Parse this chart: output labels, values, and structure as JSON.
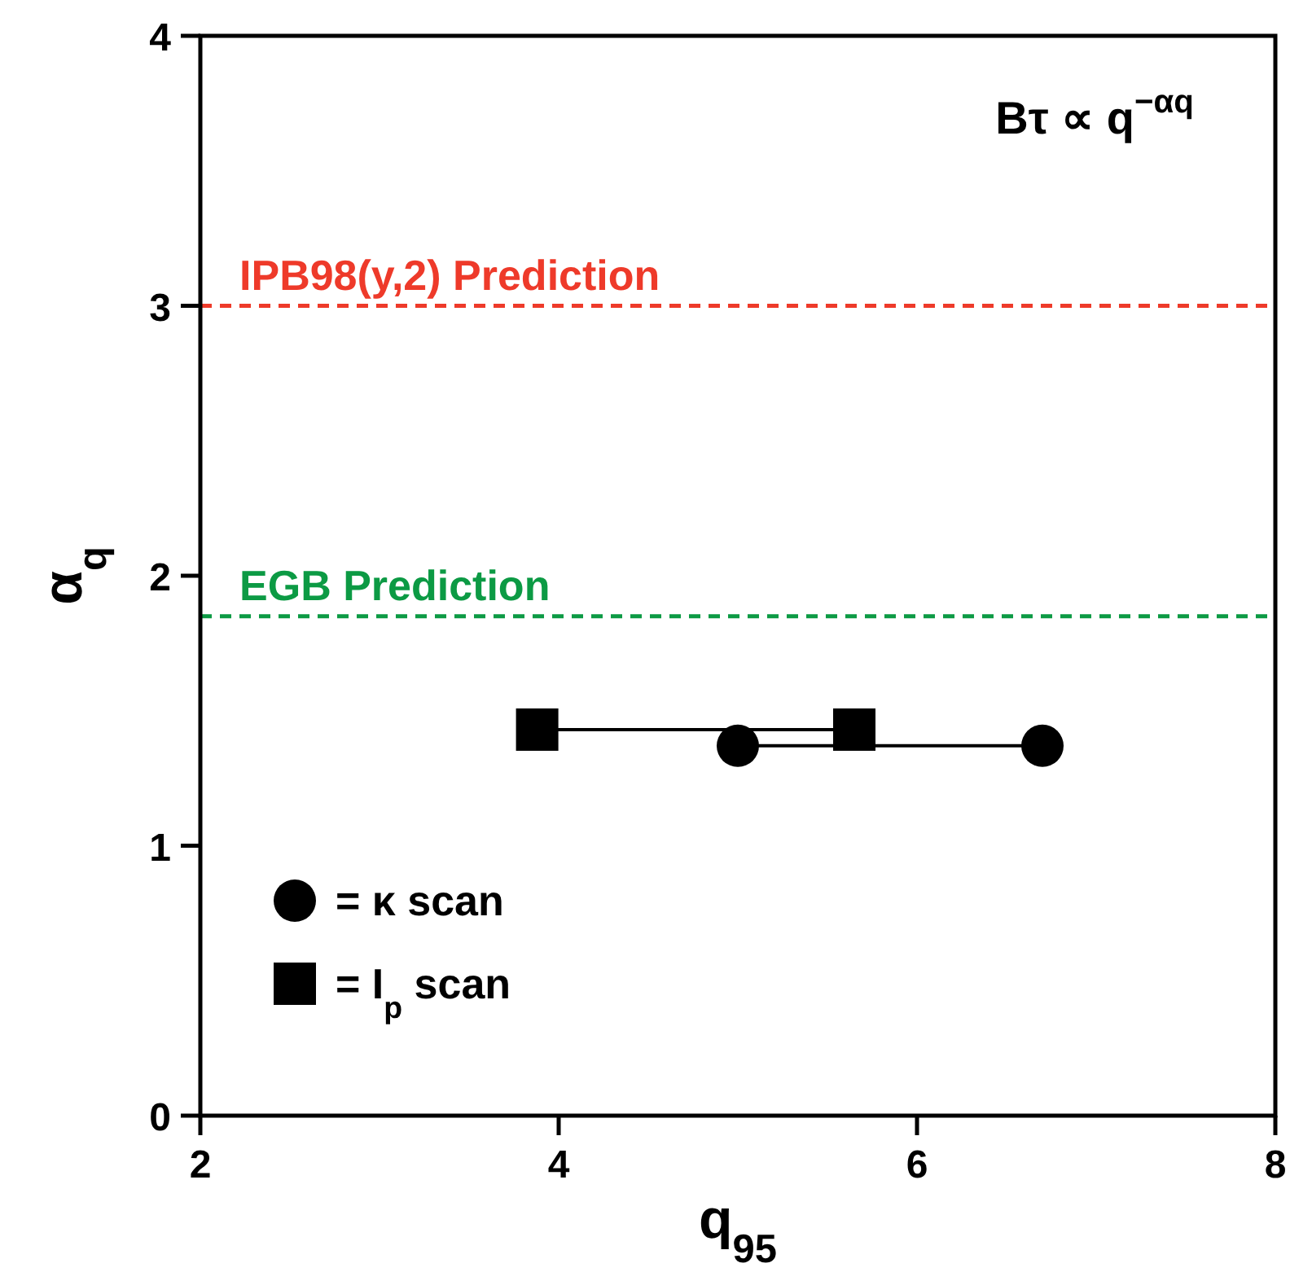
{
  "chart_data": {
    "type": "line",
    "xlabel": "q$_{95}$",
    "ylabel": "α$_{q}$",
    "xlim": [
      2,
      8
    ],
    "xticks": [
      2,
      4,
      6,
      8
    ],
    "ylim": [
      0,
      4
    ],
    "yticks": [
      0,
      1,
      2,
      3,
      4
    ],
    "grid": false,
    "legend": "bottom left",
    "line_style": "solid",
    "series": [
      {
        "name": "= κ scan",
        "color": "#000000",
        "marker": "circle",
        "x": [
          5.0,
          6.7
        ],
        "values": [
          1.37,
          1.37
        ]
      },
      {
        "name": "= I$_{p}$ scan",
        "color": "#000000",
        "marker": "square",
        "x": [
          3.88,
          5.65
        ],
        "values": [
          1.43,
          1.43
        ]
      }
    ],
    "ref_lines": [
      {
        "axis": "y",
        "value": 3.0,
        "label": "IPB98(y,2) Prediction",
        "color": "#ee3a2a",
        "line_style": "dashed"
      },
      {
        "axis": "y",
        "value": 1.85,
        "label": "EGB Prediction",
        "color": "#0c9a44",
        "line_style": "dashed"
      }
    ],
    "annotations": [
      "Bτ ∝ q$^{−αq}$"
    ]
  }
}
